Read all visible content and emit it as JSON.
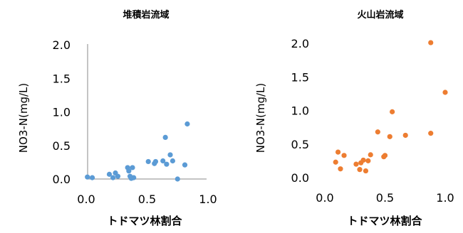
{
  "chart_data": [
    {
      "type": "scatter",
      "title": "堆積岩流域",
      "xlabel": "トドマツ林割合",
      "ylabel": "NO3-N(mg/L)",
      "xlim": [
        0,
        1.0
      ],
      "ylim": [
        0,
        2.0
      ],
      "x_ticks": [
        "0.0",
        "0.5",
        "1.0"
      ],
      "y_ticks": [
        "0.0",
        "0.5",
        "1.0",
        "1.5",
        "2.0"
      ],
      "grid": false,
      "color": "#5b9bd5",
      "series": [
        {
          "points": [
            [
              0.01,
              0.03
            ],
            [
              0.05,
              0.02
            ],
            [
              0.19,
              0.07
            ],
            [
              0.22,
              0.02
            ],
            [
              0.24,
              0.09
            ],
            [
              0.26,
              0.04
            ],
            [
              0.34,
              0.17
            ],
            [
              0.35,
              0.12
            ],
            [
              0.36,
              0.04
            ],
            [
              0.37,
              0.01
            ],
            [
              0.38,
              0.17
            ],
            [
              0.39,
              0.02
            ],
            [
              0.51,
              0.26
            ],
            [
              0.56,
              0.23
            ],
            [
              0.57,
              0.26
            ],
            [
              0.63,
              0.27
            ],
            [
              0.65,
              0.62
            ],
            [
              0.66,
              0.22
            ],
            [
              0.69,
              0.36
            ],
            [
              0.71,
              0.27
            ],
            [
              0.75,
              0.0
            ],
            [
              0.81,
              0.21
            ],
            [
              0.83,
              0.82
            ]
          ]
        }
      ]
    },
    {
      "type": "scatter",
      "title": "火山岩流域",
      "xlabel": "トドマツ林割合",
      "ylabel": "NO3-N(mg/L)",
      "xlim": [
        0,
        1.0
      ],
      "ylim": [
        0,
        2.0
      ],
      "x_ticks": [
        "0.0",
        "0.5",
        "1.0"
      ],
      "y_ticks": [
        "0.0",
        "0.5",
        "1.0",
        "1.5",
        "2.0"
      ],
      "grid": false,
      "color": "#ed7d31",
      "series": [
        {
          "points": [
            [
              0.09,
              0.23
            ],
            [
              0.11,
              0.38
            ],
            [
              0.13,
              0.13
            ],
            [
              0.16,
              0.33
            ],
            [
              0.26,
              0.2
            ],
            [
              0.29,
              0.12
            ],
            [
              0.3,
              0.22
            ],
            [
              0.32,
              0.26
            ],
            [
              0.34,
              0.1
            ],
            [
              0.36,
              0.25
            ],
            [
              0.38,
              0.34
            ],
            [
              0.44,
              0.68
            ],
            [
              0.49,
              0.31
            ],
            [
              0.5,
              0.33
            ],
            [
              0.54,
              0.61
            ],
            [
              0.56,
              0.98
            ],
            [
              0.67,
              0.63
            ],
            [
              0.88,
              2.01
            ],
            [
              0.88,
              0.66
            ],
            [
              1.0,
              1.27
            ]
          ]
        }
      ]
    }
  ]
}
